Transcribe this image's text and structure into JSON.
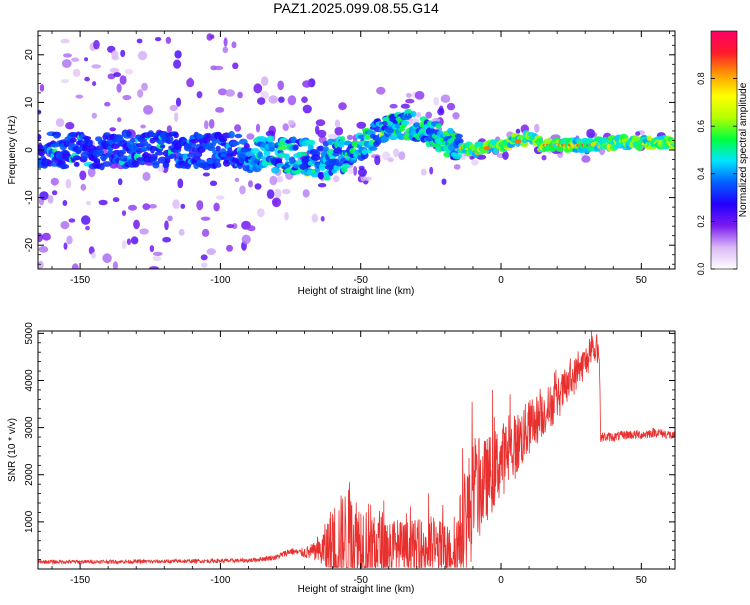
{
  "figure": {
    "title": "PAZ1.2025.099.08.55.G14"
  },
  "colors": {
    "line": "#e8312f",
    "axis": "#000000",
    "background": "#ffffff"
  },
  "chart_data": [
    {
      "type": "heatmap",
      "xlabel": "Height of straight line (km)",
      "ylabel": "Frequency (Hz)",
      "xlim": [
        -165,
        62
      ],
      "ylim": [
        -25,
        25
      ],
      "xticks": [
        -150,
        -100,
        -50,
        0,
        50
      ],
      "xtick_labels": [
        "-150",
        "-100",
        "-50",
        "0",
        "50"
      ],
      "yticks": [
        -20,
        -10,
        0,
        10,
        20
      ],
      "ytick_labels": [
        "-20",
        "-10",
        "0",
        "10",
        "20"
      ],
      "colorbar": {
        "label": "Normalized spectral amplitude",
        "range": [
          0,
          1
        ],
        "ticks": [
          0.0,
          0.2,
          0.4,
          0.6,
          0.8
        ],
        "tick_labels": [
          "0.0",
          "0.2",
          "0.4",
          "0.6",
          "0.8"
        ],
        "stops": [
          "#ffffff",
          "#d9b8f5",
          "#7a1bf0",
          "#2200ff",
          "#0060ff",
          "#00e5ff",
          "#00ff3c",
          "#b5ff00",
          "#ffff00",
          "#ff9a00",
          "#ff1a2a",
          "#ff0066"
        ]
      },
      "ridge": {
        "x": [
          -160,
          -140,
          -120,
          -100,
          -85,
          -75,
          -65,
          -55,
          -50,
          -45,
          -40,
          -35,
          -30,
          -25,
          -20,
          -15,
          -10,
          -5,
          0,
          5,
          10,
          15,
          20,
          30,
          40,
          50,
          60
        ],
        "y": [
          0,
          0,
          0,
          0,
          -1,
          -1,
          -2,
          -1,
          1,
          3,
          5,
          5.5,
          5,
          3.5,
          2,
          0.5,
          0,
          0.5,
          1,
          2,
          2.5,
          1,
          1,
          1,
          1.5,
          1.5,
          1.5
        ]
      }
    },
    {
      "type": "line",
      "xlabel": "Height of straight line (km)",
      "ylabel": "SNR (10 * v/v)",
      "xlim": [
        -165,
        62
      ],
      "ylim": [
        0,
        5050
      ],
      "xticks": [
        -150,
        -100,
        -50,
        0,
        50
      ],
      "xtick_labels": [
        "-150",
        "-100",
        "-50",
        "0",
        "50"
      ],
      "yticks": [
        1000,
        2000,
        3000,
        4000,
        5000
      ],
      "ytick_labels": [
        "1000",
        "2000",
        "3000",
        "4000",
        "5000"
      ],
      "trend": {
        "x": [
          -165,
          -120,
          -90,
          -80,
          -75,
          -72,
          -65,
          -60,
          -55,
          -50,
          -45,
          -40,
          -35,
          -30,
          -25,
          -20,
          -17,
          -15,
          -12,
          -10,
          -5,
          0,
          5,
          10,
          15,
          20,
          25,
          30,
          33,
          35,
          35.5,
          40,
          45,
          50,
          55,
          60,
          62
        ],
        "base": [
          150,
          160,
          180,
          250,
          380,
          350,
          350,
          500,
          650,
          550,
          500,
          450,
          420,
          400,
          450,
          400,
          350,
          600,
          1100,
          1500,
          1900,
          2300,
          2600,
          3000,
          3300,
          3600,
          4000,
          4400,
          4600,
          4650,
          2800,
          2800,
          2850,
          2850,
          2900,
          2850,
          2800
        ],
        "amp": [
          40,
          40,
          45,
          60,
          80,
          70,
          250,
          900,
          1100,
          1000,
          900,
          700,
          600,
          650,
          700,
          600,
          450,
          900,
          1300,
          1200,
          900,
          800,
          700,
          600,
          500,
          450,
          400,
          350,
          300,
          300,
          100,
          100,
          100,
          100,
          100,
          100,
          100
        ]
      }
    }
  ]
}
